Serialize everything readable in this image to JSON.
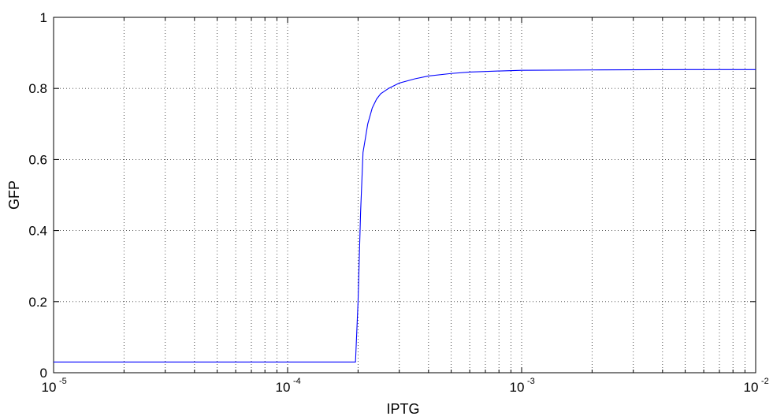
{
  "chart_data": {
    "type": "line",
    "xlabel": "IPTG",
    "ylabel": "GFP",
    "xscale": "log",
    "xlim": [
      1e-05,
      0.01
    ],
    "ylim": [
      0,
      1
    ],
    "grid": true,
    "x_ticks": [
      {
        "base": "10",
        "exp": "-5"
      },
      {
        "base": "10",
        "exp": "-4"
      },
      {
        "base": "10",
        "exp": "-3"
      },
      {
        "base": "10",
        "exp": "-2"
      }
    ],
    "y_ticks": [
      "0",
      "0.2",
      "0.4",
      "0.6",
      "0.8",
      "1"
    ],
    "series": [
      {
        "color": "#0000ff",
        "x": [
          1e-05,
          5e-05,
          0.0001,
          0.00015,
          0.000195,
          0.0002,
          0.000205,
          0.00021,
          0.000215,
          0.00022,
          0.00023,
          0.00024,
          0.00025,
          0.00027,
          0.0003,
          0.00035,
          0.0004,
          0.0005,
          0.0006,
          0.0008,
          0.001,
          0.002,
          0.005,
          0.01
        ],
        "y": [
          0.03,
          0.03,
          0.03,
          0.03,
          0.03,
          0.2,
          0.45,
          0.62,
          0.66,
          0.7,
          0.745,
          0.77,
          0.785,
          0.8,
          0.815,
          0.827,
          0.835,
          0.842,
          0.846,
          0.849,
          0.851,
          0.852,
          0.853,
          0.853
        ]
      }
    ]
  }
}
